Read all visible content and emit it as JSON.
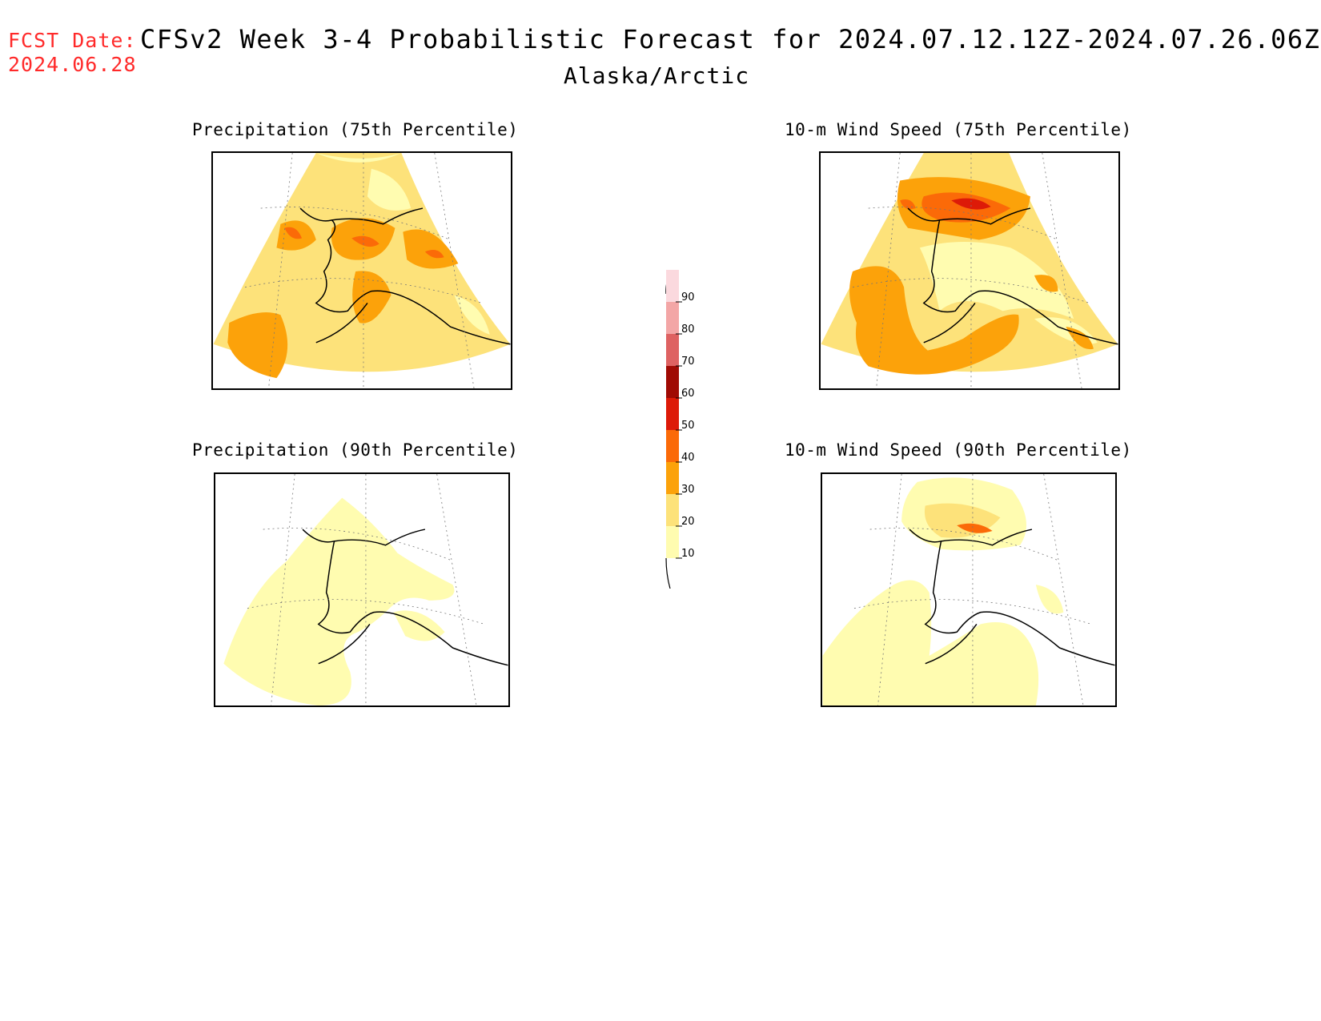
{
  "header": {
    "fcst_label": "FCST Date:",
    "fcst_date": "2024.06.28",
    "title": "CFSv2 Week 3-4 Probabilistic Forecast for 2024.07.12.12Z-2024.07.26.06Z",
    "region": "Alaska/Arctic"
  },
  "panels": [
    {
      "title": "Precipitation (75th Percentile)"
    },
    {
      "title": "10-m Wind Speed (75th Percentile)"
    },
    {
      "title": "Precipitation (90th Percentile)"
    },
    {
      "title": "10-m Wind Speed (90th Percentile)"
    }
  ],
  "colorbar": {
    "levels": [
      "10",
      "20",
      "30",
      "40",
      "50",
      "60",
      "70",
      "80",
      "90"
    ],
    "colors": [
      "#fffcb0",
      "#fde27a",
      "#fca20a",
      "#fb6a08",
      "#dd1a08",
      "#a00a04",
      "#de6262",
      "#f3a6a6",
      "#fbd9de"
    ]
  }
}
